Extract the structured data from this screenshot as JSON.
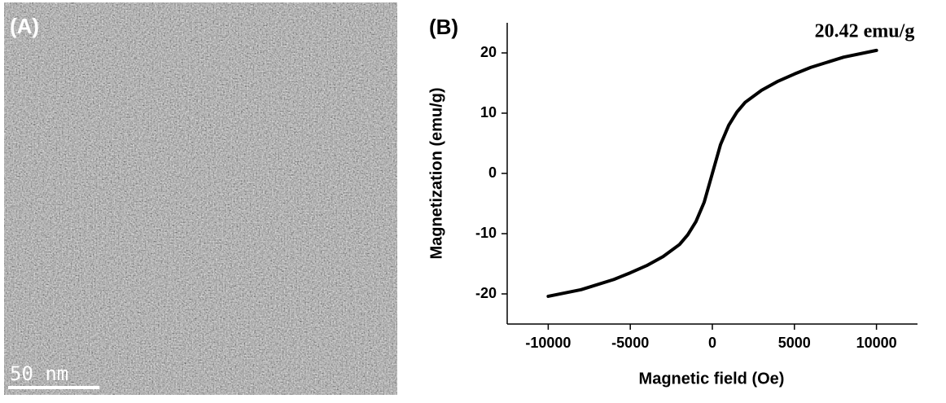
{
  "panel_a": {
    "label": "(A)",
    "scale_bar": "50 nm"
  },
  "chart_data": {
    "type": "line",
    "panel_label": "(B)",
    "x_label": "Magnetic field (Oe)",
    "y_label": "Magnetization (emu/g)",
    "annotation": "20.42 emu/g",
    "x": [
      -10000,
      -8000,
      -6000,
      -5000,
      -4000,
      -3000,
      -2000,
      -1500,
      -1000,
      -500,
      0,
      500,
      1000,
      1500,
      2000,
      3000,
      4000,
      5000,
      6000,
      8000,
      10000
    ],
    "values": [
      -20.4,
      -19.3,
      -17.6,
      -16.5,
      -15.3,
      -13.8,
      -11.8,
      -10.2,
      -8,
      -4.8,
      0,
      4.8,
      8,
      10.2,
      11.8,
      13.8,
      15.3,
      16.5,
      17.6,
      19.3,
      20.42
    ],
    "color": "#000000",
    "xlim": [
      -12500,
      12500
    ],
    "xticks": [
      -10000,
      -5000,
      0,
      5000,
      10000
    ],
    "ylim": [
      -25,
      25
    ],
    "yticks": [
      -20,
      -10,
      0,
      10,
      20
    ],
    "grid": false
  }
}
